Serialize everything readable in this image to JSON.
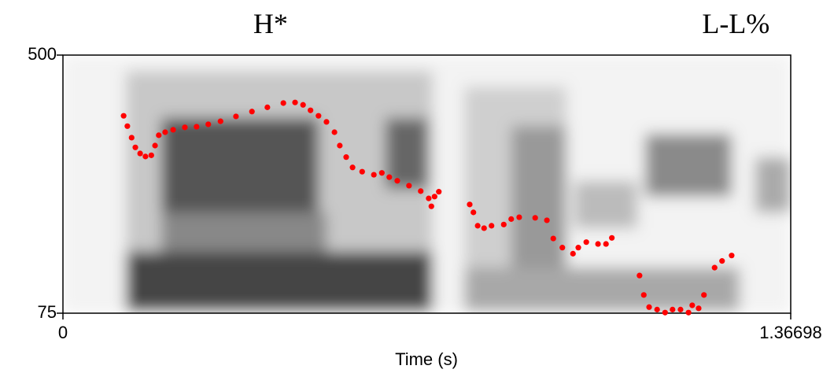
{
  "chart_data": {
    "type": "scatter",
    "annotations": [
      {
        "text": "H*",
        "x": 0.39
      },
      {
        "text": "L-L%",
        "x": 1.264
      }
    ],
    "x_label": "Time (s)",
    "xlim": [
      0,
      1.36698
    ],
    "xticks": [
      0,
      1.36698
    ],
    "ylim": [
      75,
      500
    ],
    "yticks": [
      75,
      500
    ],
    "color": "#ff0000",
    "x": [
      0.114,
      0.121,
      0.129,
      0.136,
      0.145,
      0.155,
      0.166,
      0.173,
      0.18,
      0.192,
      0.207,
      0.229,
      0.251,
      0.273,
      0.296,
      0.325,
      0.355,
      0.384,
      0.414,
      0.436,
      0.451,
      0.465,
      0.48,
      0.495,
      0.51,
      0.52,
      0.532,
      0.544,
      0.562,
      0.584,
      0.599,
      0.613,
      0.628,
      0.65,
      0.672,
      0.687,
      0.692,
      0.698,
      0.706,
      0.764,
      0.771,
      0.779,
      0.791,
      0.805,
      0.828,
      0.842,
      0.857,
      0.887,
      0.909,
      0.921,
      0.938,
      0.958,
      0.968,
      0.983,
      1.005,
      1.02,
      1.031,
      1.083,
      1.091,
      1.101,
      1.116,
      1.131,
      1.145,
      1.16,
      1.175,
      1.182,
      1.194,
      1.204,
      1.224,
      1.238,
      1.256
    ],
    "values": [
      400,
      383,
      364,
      348,
      338,
      333,
      335,
      351,
      368,
      373,
      377,
      381,
      382,
      386,
      391,
      399,
      407,
      414,
      421,
      422,
      418,
      409,
      400,
      390,
      373,
      351,
      332,
      315,
      308,
      303,
      306,
      299,
      293,
      285,
      276,
      264,
      251,
      267,
      275,
      254,
      241,
      219,
      215,
      219,
      221,
      230,
      233,
      232,
      228,
      198,
      183,
      173,
      183,
      192,
      189,
      189,
      199,
      137,
      105,
      85,
      81,
      76,
      81,
      81,
      76,
      88,
      83,
      105,
      150,
      161,
      170
    ]
  }
}
